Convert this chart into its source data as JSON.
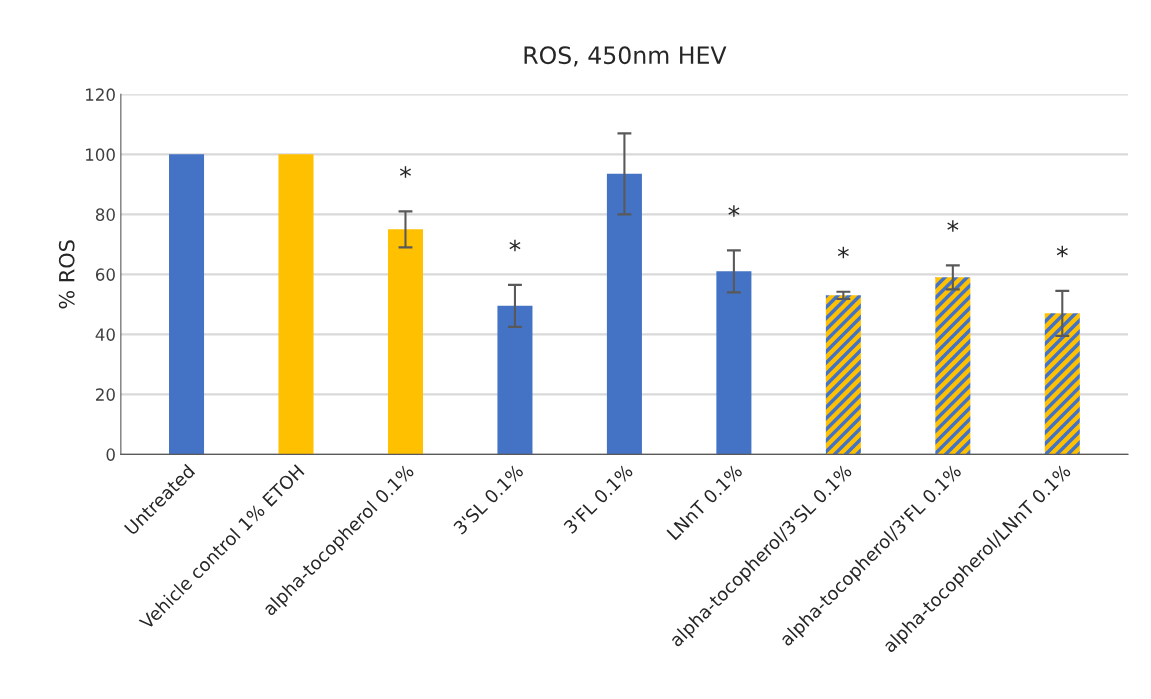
{
  "chart_data": {
    "type": "bar",
    "title": "ROS, 450nm HEV",
    "ylabel": "% ROS",
    "categories": [
      "Untreated",
      "Vehicle control 1% ETOH",
      "alpha-tocopherol 0.1%",
      "3'SL 0.1%",
      "3'FL 0.1%",
      "LNnT 0.1%",
      "alpha-tocopherol/3'SL 0.1%",
      "alpha-tocopherol/3'FL 0.1%",
      "alpha-tocopherol/LNnT 0.1%"
    ],
    "values": [
      100,
      100,
      75,
      49.5,
      93.5,
      61,
      53,
      59,
      47
    ],
    "errors": [
      null,
      null,
      6,
      7,
      13.5,
      7,
      1.2,
      4,
      7.5
    ],
    "colors": [
      "#4472c4",
      "#ffc000",
      "#ffc000",
      "#4472c4",
      "#4472c4",
      "#4472c4",
      [
        "#ffc000",
        "#4472c4"
      ],
      [
        "#ffc000",
        "#4472c4"
      ],
      [
        "#ffc000",
        "#4472c4"
      ]
    ],
    "value_labels": [
      null,
      null,
      "*",
      "*",
      null,
      "*",
      "*",
      "*",
      "*"
    ],
    "ylim": [
      0,
      120
    ],
    "yticks": [
      0,
      20,
      40,
      60,
      80,
      100,
      120
    ],
    "grid": "y"
  }
}
